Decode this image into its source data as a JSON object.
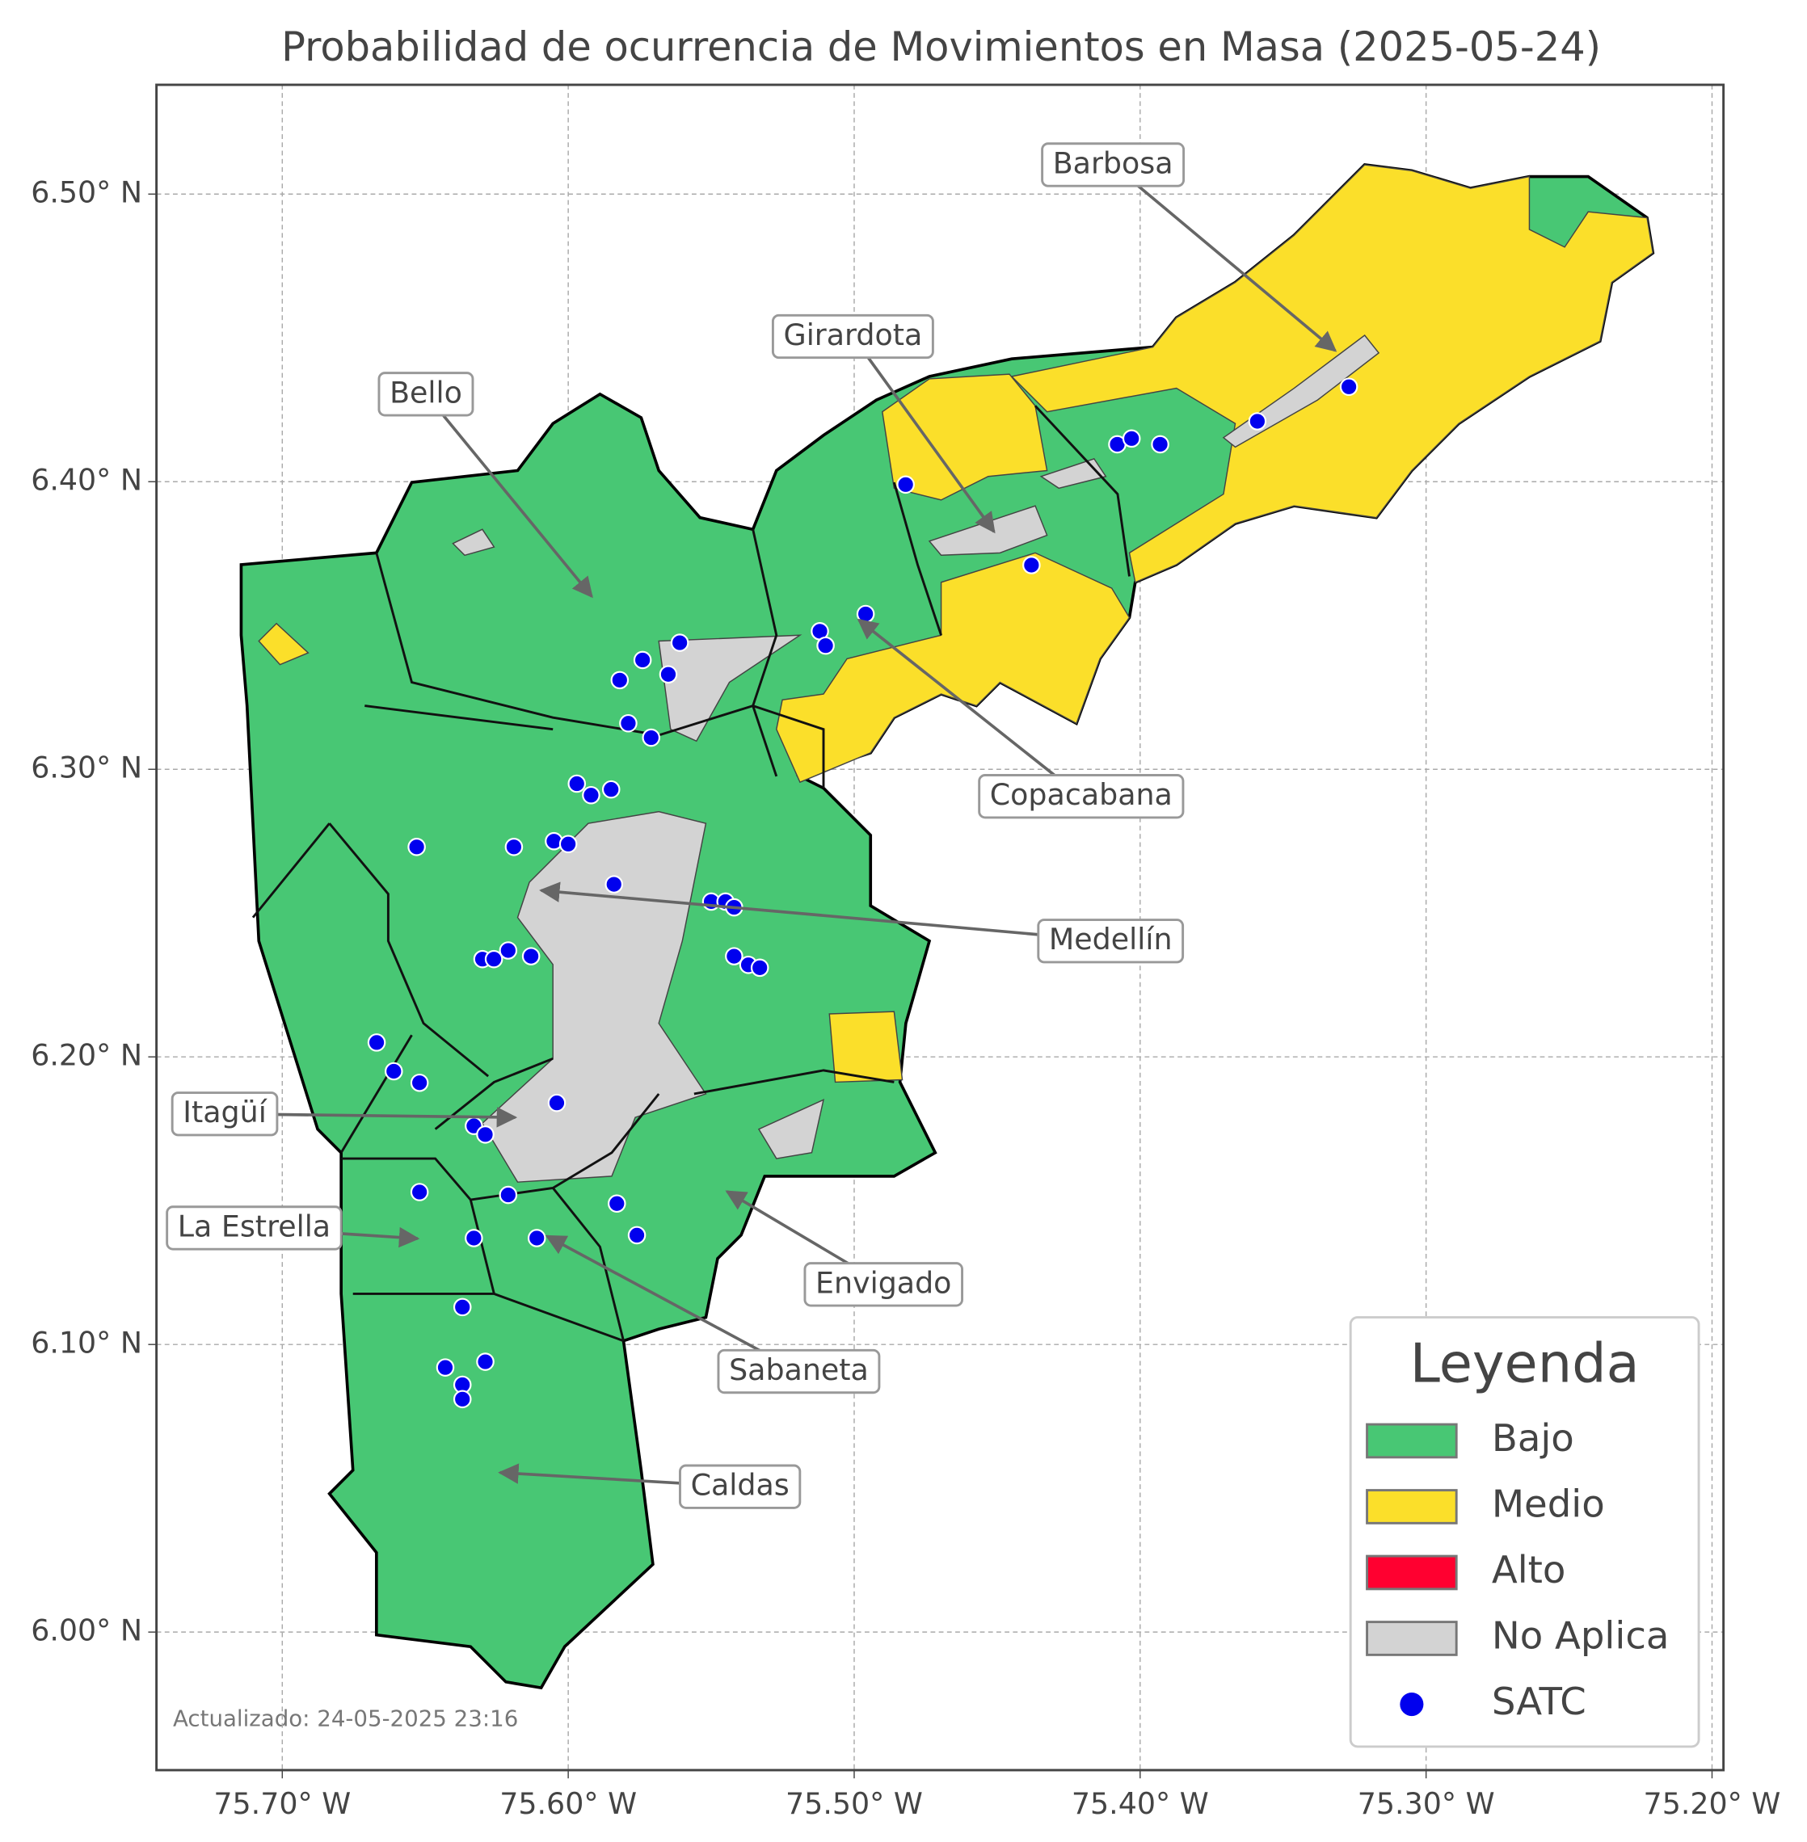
{
  "chart_data": {
    "type": "map",
    "title": "Probabilidad de ocurrencia de Movimientos en Masa (2025-05-24)",
    "xlim": [
      -75.744,
      -75.196
    ],
    "ylim": [
      5.952,
      6.538
    ],
    "xticks": [
      {
        "value": -75.7,
        "label": "75.70° W"
      },
      {
        "value": -75.6,
        "label": "75.60° W"
      },
      {
        "value": -75.5,
        "label": "75.50° W"
      },
      {
        "value": -75.4,
        "label": "75.40° W"
      },
      {
        "value": -75.3,
        "label": "75.30° W"
      },
      {
        "value": -75.2,
        "label": "75.20° W"
      }
    ],
    "yticks": [
      {
        "value": 6.0,
        "label": "6.00° N"
      },
      {
        "value": 6.1,
        "label": "6.10° N"
      },
      {
        "value": 6.2,
        "label": "6.20° N"
      },
      {
        "value": 6.3,
        "label": "6.30° N"
      },
      {
        "value": 6.4,
        "label": "6.40° N"
      },
      {
        "value": 6.5,
        "label": "6.50° N"
      }
    ],
    "grid": true,
    "annotations": [
      "Barbosa",
      "Girardota",
      "Bello",
      "Copacabana",
      "Medellín",
      "Itagüí",
      "La Estrella",
      "Envigado",
      "Sabaneta",
      "Caldas"
    ],
    "legend": {
      "title": "Leyenda",
      "items": [
        {
          "name": "Bajo",
          "color": "#48c774"
        },
        {
          "name": "Medio",
          "color": "#fbdf2a"
        },
        {
          "name": "Alto",
          "color": "#ff0030"
        },
        {
          "name": "No Aplica",
          "color": "#d3d3d3"
        }
      ]
    },
    "stations": {
      "name": "SATC",
      "color": "#0000ee",
      "lon": [
        -75.482,
        -75.408,
        -75.403,
        -75.393,
        -75.359,
        -75.327,
        -75.438,
        -75.496,
        -75.512,
        -75.51,
        -75.561,
        -75.574,
        -75.565,
        -75.582,
        -75.579,
        -75.571,
        -75.597,
        -75.592,
        -75.585,
        -75.653,
        -75.619,
        -75.605,
        -75.6,
        -75.584,
        -75.55,
        -75.545,
        -75.542,
        -75.542,
        -75.537,
        -75.533,
        -75.621,
        -75.613,
        -75.63,
        -75.626,
        -75.667,
        -75.661,
        -75.652,
        -75.604,
        -75.633,
        -75.629,
        -75.652,
        -75.621,
        -75.583,
        -75.576,
        -75.633,
        -75.611,
        -75.637,
        -75.643,
        -75.629,
        -75.637,
        -75.637
      ],
      "lat": [
        6.399,
        6.413,
        6.415,
        6.413,
        6.421,
        6.433,
        6.371,
        6.354,
        6.348,
        6.343,
        6.344,
        6.338,
        6.333,
        6.331,
        6.316,
        6.311,
        6.295,
        6.291,
        6.293,
        6.273,
        6.273,
        6.275,
        6.274,
        6.26,
        6.254,
        6.254,
        6.252,
        6.235,
        6.232,
        6.231,
        6.237,
        6.235,
        6.234,
        6.234,
        6.205,
        6.195,
        6.191,
        6.184,
        6.176,
        6.173,
        6.153,
        6.152,
        6.149,
        6.138,
        6.137,
        6.137,
        6.113,
        6.092,
        6.094,
        6.086,
        6.081
      ]
    },
    "footer": "Actualizado: 24-05-2025 23:16"
  }
}
